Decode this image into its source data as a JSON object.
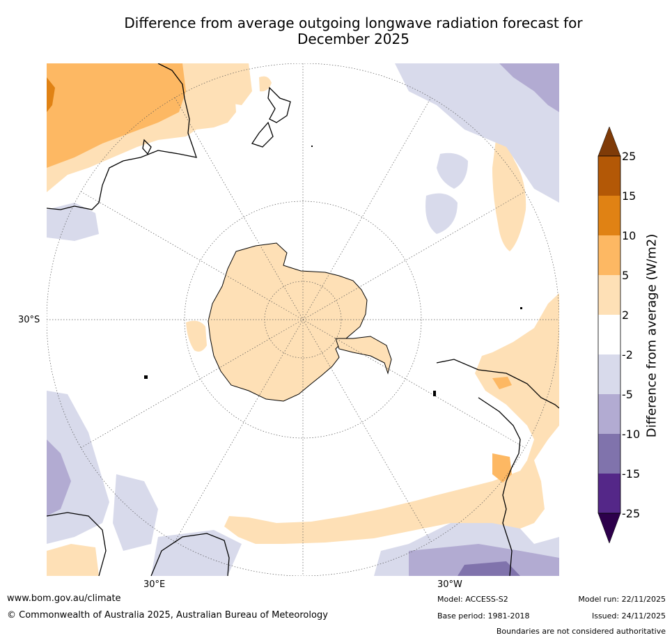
{
  "title": {
    "line1": "Difference from average outgoing longwave radiation forecast for",
    "line2": "December 2025"
  },
  "map": {
    "lat_label": "30°S",
    "lon_label_left": "30°E",
    "lon_label_right": "30°W"
  },
  "colorbar": {
    "title": "Difference from average (W/m2)",
    "ticks": [
      "25",
      "15",
      "10",
      "5",
      "2",
      "-2",
      "-5",
      "-10",
      "-15",
      "-25"
    ],
    "colors": {
      "over": "#7f3b08",
      "c15_25": "#b35806",
      "c10_15": "#e08214",
      "c5_10": "#fdb863",
      "c2_5": "#fee0b6",
      "neutral": "#ffffff",
      "cm5_m2": "#d8daeb",
      "cm10_m5": "#b2abd2",
      "cm15_m10": "#8073ac",
      "cm25_m15": "#542788",
      "under": "#2d004b"
    }
  },
  "footer": {
    "website": "www.bom.gov.au/climate",
    "copyright": "© Commonwealth of Australia 2025, Australian Bureau of Meteorology",
    "model": "Model: ACCESS-S2",
    "base_period": "Base period: 1981-2018",
    "model_run": "Model run: 22/11/2025",
    "issued": "Issued: 24/11/2025",
    "disclaimer": "Boundaries are not considered authoritative"
  }
}
